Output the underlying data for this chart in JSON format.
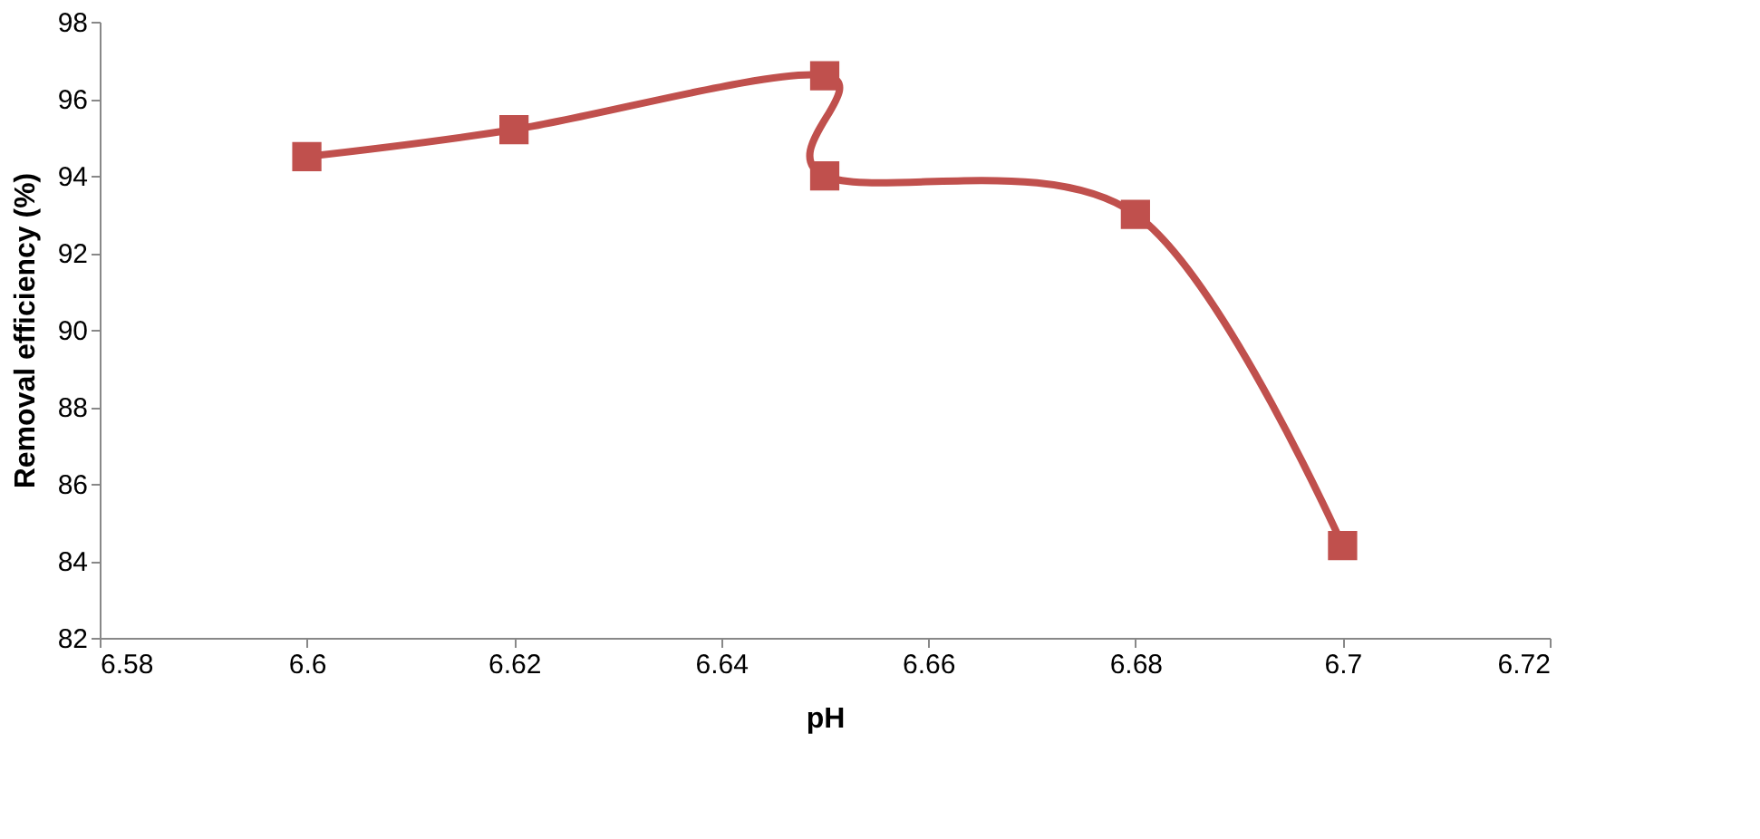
{
  "chart_data": {
    "type": "line",
    "xlabel": "pH",
    "ylabel": "Removal efficiency (%)",
    "x": [
      6.6,
      6.62,
      6.65,
      6.65,
      6.68,
      6.7
    ],
    "series": [
      {
        "color": "#c0504d",
        "values": [
          94.5,
          95.2,
          96.6,
          94.0,
          93.0,
          84.4
        ]
      }
    ],
    "xlim": [
      6.58,
      6.72
    ],
    "xticks": [
      6.58,
      6.6,
      6.62,
      6.64,
      6.66,
      6.68,
      6.7,
      6.72
    ],
    "ylim": [
      82,
      98
    ],
    "yticks": [
      82,
      84,
      86,
      88,
      90,
      92,
      94,
      96,
      98
    ],
    "grid": false,
    "marker": "square",
    "line_style": "solid"
  }
}
